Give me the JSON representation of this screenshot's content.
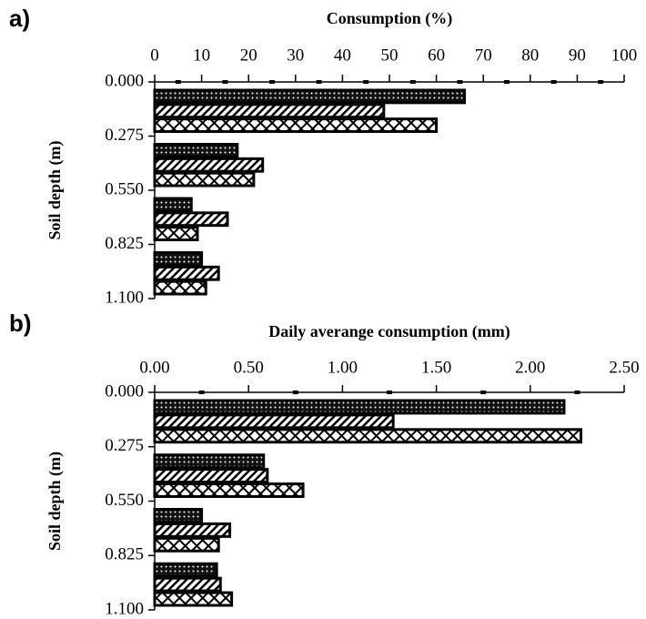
{
  "chart_data": [
    {
      "type": "bar",
      "orientation": "horizontal",
      "panel_label": "a)",
      "xlabel": "Consumption (%)",
      "ylabel": "Soil depth (m)",
      "xlim": [
        0,
        100
      ],
      "xticks": [
        0,
        10,
        20,
        30,
        40,
        50,
        60,
        70,
        80,
        90,
        100
      ],
      "xminorticks": [
        5,
        15,
        25,
        35,
        45,
        55,
        65,
        75,
        85,
        95
      ],
      "ylim": [
        0,
        1.1
      ],
      "yticks": [
        {
          "value": 0,
          "label": "0.000"
        },
        {
          "value": 0.275,
          "label": "0.275"
        },
        {
          "value": 0.55,
          "label": "0.550"
        },
        {
          "value": 0.825,
          "label": "0.825"
        },
        {
          "value": 1.1,
          "label": "1.100"
        }
      ],
      "series": [
        {
          "pattern": "dots",
          "values": [
            66,
            17.6,
            7.8,
            10
          ]
        },
        {
          "pattern": "diagonal",
          "values": [
            48.8,
            23,
            15.5,
            13.6
          ]
        },
        {
          "pattern": "crosshatch",
          "values": [
            60,
            21.1,
            9.1,
            10.9
          ]
        }
      ]
    },
    {
      "type": "bar",
      "orientation": "horizontal",
      "panel_label": "b)",
      "xlabel": "Daily averange consumption (mm)",
      "ylabel": "Soil depth (m)",
      "xlim": [
        0,
        2.5
      ],
      "xticks": [
        {
          "value": 0,
          "label": "0.00"
        },
        {
          "value": 0.5,
          "label": "0.50"
        },
        {
          "value": 1,
          "label": "1.00"
        },
        {
          "value": 1.5,
          "label": "1.50"
        },
        {
          "value": 2,
          "label": "2.00"
        },
        {
          "value": 2.5,
          "label": "2.50"
        }
      ],
      "xminorticks": [
        0.25,
        0.75,
        1.25,
        1.75,
        2.25
      ],
      "ylim": [
        0,
        1.1
      ],
      "yticks": [
        {
          "value": 0,
          "label": "0.000"
        },
        {
          "value": 0.275,
          "label": "0.275"
        },
        {
          "value": 0.55,
          "label": "0.550"
        },
        {
          "value": 0.825,
          "label": "0.825"
        },
        {
          "value": 1.1,
          "label": "1.100"
        }
      ],
      "series": [
        {
          "pattern": "dots",
          "values": [
            2.18,
            0.58,
            0.25,
            0.33
          ]
        },
        {
          "pattern": "diagonal",
          "values": [
            1.27,
            0.6,
            0.4,
            0.35
          ]
        },
        {
          "pattern": "crosshatch",
          "values": [
            2.27,
            0.79,
            0.34,
            0.41
          ]
        }
      ]
    }
  ]
}
